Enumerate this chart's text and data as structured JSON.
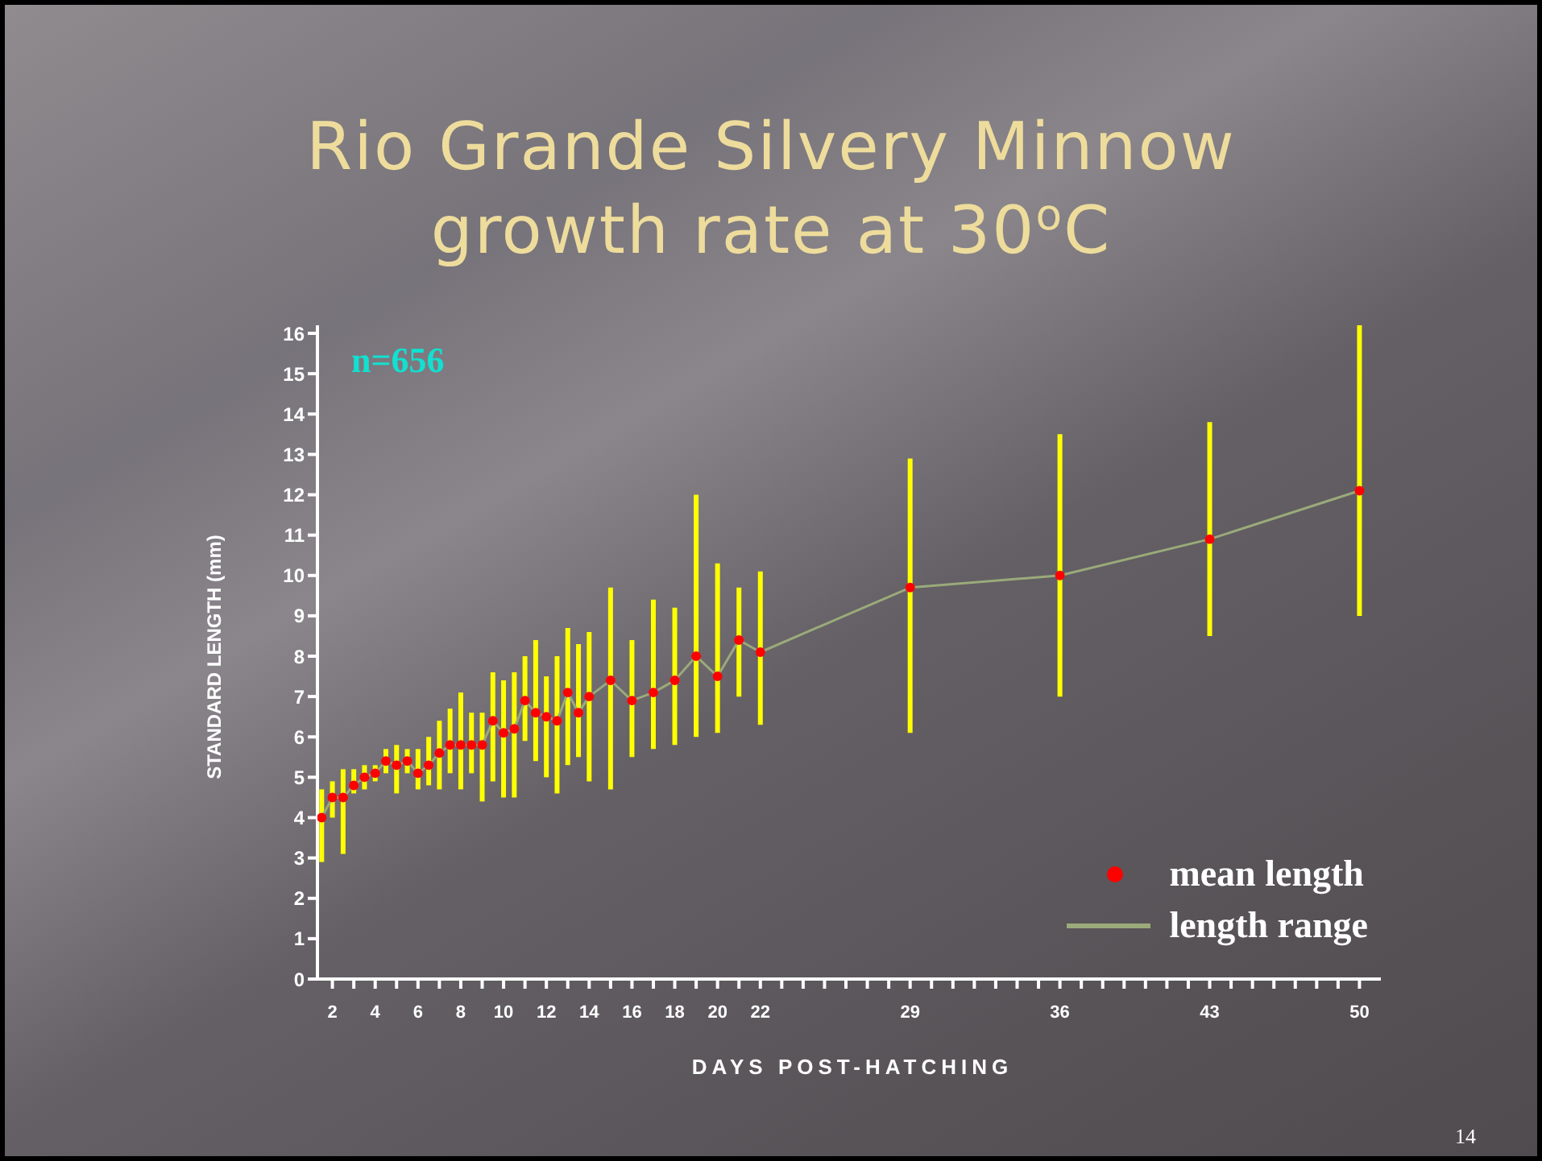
{
  "chart_data": {
    "type": "line",
    "title": "Rio Grande Silvery Minnow\ngrowth rate at 30$^{o}$C",
    "xlabel": "DAYS POST-HATCHING",
    "ylabel": "STANDARD LENGTH (mm)",
    "annotations": [
      "n=656",
      "14"
    ],
    "x": [
      1.5,
      2,
      2.5,
      3,
      3.5,
      4,
      4.5,
      5,
      5.5,
      6,
      6.5,
      7,
      7.5,
      8,
      8.5,
      9,
      9.5,
      10,
      10.5,
      11,
      11.5,
      12,
      12.5,
      13,
      13.5,
      14,
      15,
      16,
      17,
      18,
      19,
      20,
      21,
      22,
      29,
      36,
      43,
      50
    ],
    "series": [
      {
        "name": "mean length",
        "type": "scatter",
        "color": "#ff0000",
        "marker": "circle",
        "values": [
          4.0,
          4.5,
          4.5,
          4.8,
          5.0,
          5.1,
          5.4,
          5.3,
          5.4,
          5.1,
          5.3,
          5.6,
          5.8,
          5.8,
          5.8,
          5.8,
          6.4,
          6.1,
          6.2,
          6.9,
          6.6,
          6.5,
          6.4,
          7.1,
          6.6,
          7.0,
          7.4,
          6.9,
          7.1,
          7.4,
          8.0,
          7.5,
          8.4,
          8.1,
          9.7,
          10.0,
          10.9,
          12.1
        ],
        "errors": [
          [
            2.9,
            4.7
          ],
          [
            4.0,
            4.9
          ],
          [
            3.1,
            5.2
          ],
          [
            4.6,
            5.2
          ],
          [
            4.7,
            5.3
          ],
          [
            4.9,
            5.3
          ],
          [
            5.1,
            5.7
          ],
          [
            4.6,
            5.8
          ],
          [
            5.1,
            5.7
          ],
          [
            4.7,
            5.7
          ],
          [
            4.8,
            6.0
          ],
          [
            4.7,
            6.4
          ],
          [
            5.1,
            6.7
          ],
          [
            4.7,
            7.1
          ],
          [
            5.1,
            6.6
          ],
          [
            4.4,
            6.6
          ],
          [
            4.9,
            7.6
          ],
          [
            4.5,
            7.4
          ],
          [
            4.5,
            7.6
          ],
          [
            5.9,
            8.0
          ],
          [
            5.4,
            8.4
          ],
          [
            5.0,
            7.5
          ],
          [
            4.6,
            8.0
          ],
          [
            5.3,
            8.7
          ],
          [
            5.5,
            8.3
          ],
          [
            4.9,
            8.6
          ],
          [
            4.7,
            9.7
          ],
          [
            5.5,
            8.4
          ],
          [
            5.7,
            9.4
          ],
          [
            5.8,
            9.2
          ],
          [
            6.0,
            12.0
          ],
          [
            6.1,
            10.3
          ],
          [
            7.0,
            9.7
          ],
          [
            6.3,
            10.1
          ],
          [
            6.1,
            12.9
          ],
          [
            7.0,
            13.5
          ],
          [
            8.5,
            13.8
          ],
          [
            9.0,
            16.2
          ]
        ]
      },
      {
        "name": "length range",
        "type": "line",
        "color": "#9aaa7a",
        "marker": "none",
        "values": [
          4.0,
          4.5,
          4.5,
          4.8,
          5.0,
          5.1,
          5.4,
          5.3,
          5.4,
          5.1,
          5.3,
          5.6,
          5.8,
          5.8,
          5.8,
          5.8,
          6.4,
          6.1,
          6.2,
          6.9,
          6.6,
          6.5,
          6.4,
          7.1,
          6.6,
          7.0,
          7.4,
          6.9,
          7.1,
          7.4,
          8.0,
          7.5,
          8.4,
          8.1,
          9.7,
          10.0,
          10.9,
          12.1
        ]
      }
    ],
    "xlim": [
      1.3,
      51
    ],
    "xticks": [
      2,
      {
        "value": 3,
        "label": null
      },
      4,
      {
        "value": 5,
        "label": null
      },
      6,
      {
        "value": 7,
        "label": null
      },
      8,
      {
        "value": 9,
        "label": null
      },
      10,
      {
        "value": 11,
        "label": null
      },
      12,
      {
        "value": 13,
        "label": null
      },
      14,
      {
        "value": 15,
        "label": null
      },
      16,
      {
        "value": 17,
        "label": null
      },
      18,
      {
        "value": 19,
        "label": null
      },
      20,
      {
        "value": 21,
        "label": null
      },
      22,
      {
        "value": 23,
        "label": null
      },
      {
        "value": 24,
        "label": null
      },
      {
        "value": 25,
        "label": null
      },
      {
        "value": 26,
        "label": null
      },
      {
        "value": 27,
        "label": null
      },
      {
        "value": 28,
        "label": null
      },
      29,
      {
        "value": 30,
        "label": null
      },
      {
        "value": 31,
        "label": null
      },
      {
        "value": 32,
        "label": null
      },
      {
        "value": 33,
        "label": null
      },
      {
        "value": 34,
        "label": null
      },
      {
        "value": 35,
        "label": null
      },
      36,
      {
        "value": 37,
        "label": null
      },
      {
        "value": 38,
        "label": null
      },
      {
        "value": 39,
        "label": null
      },
      {
        "value": 40,
        "label": null
      },
      {
        "value": 41,
        "label": null
      },
      {
        "value": 42,
        "label": null
      },
      43,
      {
        "value": 44,
        "label": null
      },
      {
        "value": 45,
        "label": null
      },
      {
        "value": 46,
        "label": null
      },
      {
        "value": 47,
        "label": null
      },
      {
        "value": 48,
        "label": null
      },
      {
        "value": 49,
        "label": null
      },
      50
    ],
    "ylim": [
      0,
      16.2
    ],
    "yticks": [
      0,
      1,
      2,
      3,
      4,
      5,
      6,
      7,
      8,
      9,
      10,
      11,
      12,
      13,
      14,
      15,
      16
    ],
    "legend": "bottom right"
  }
}
